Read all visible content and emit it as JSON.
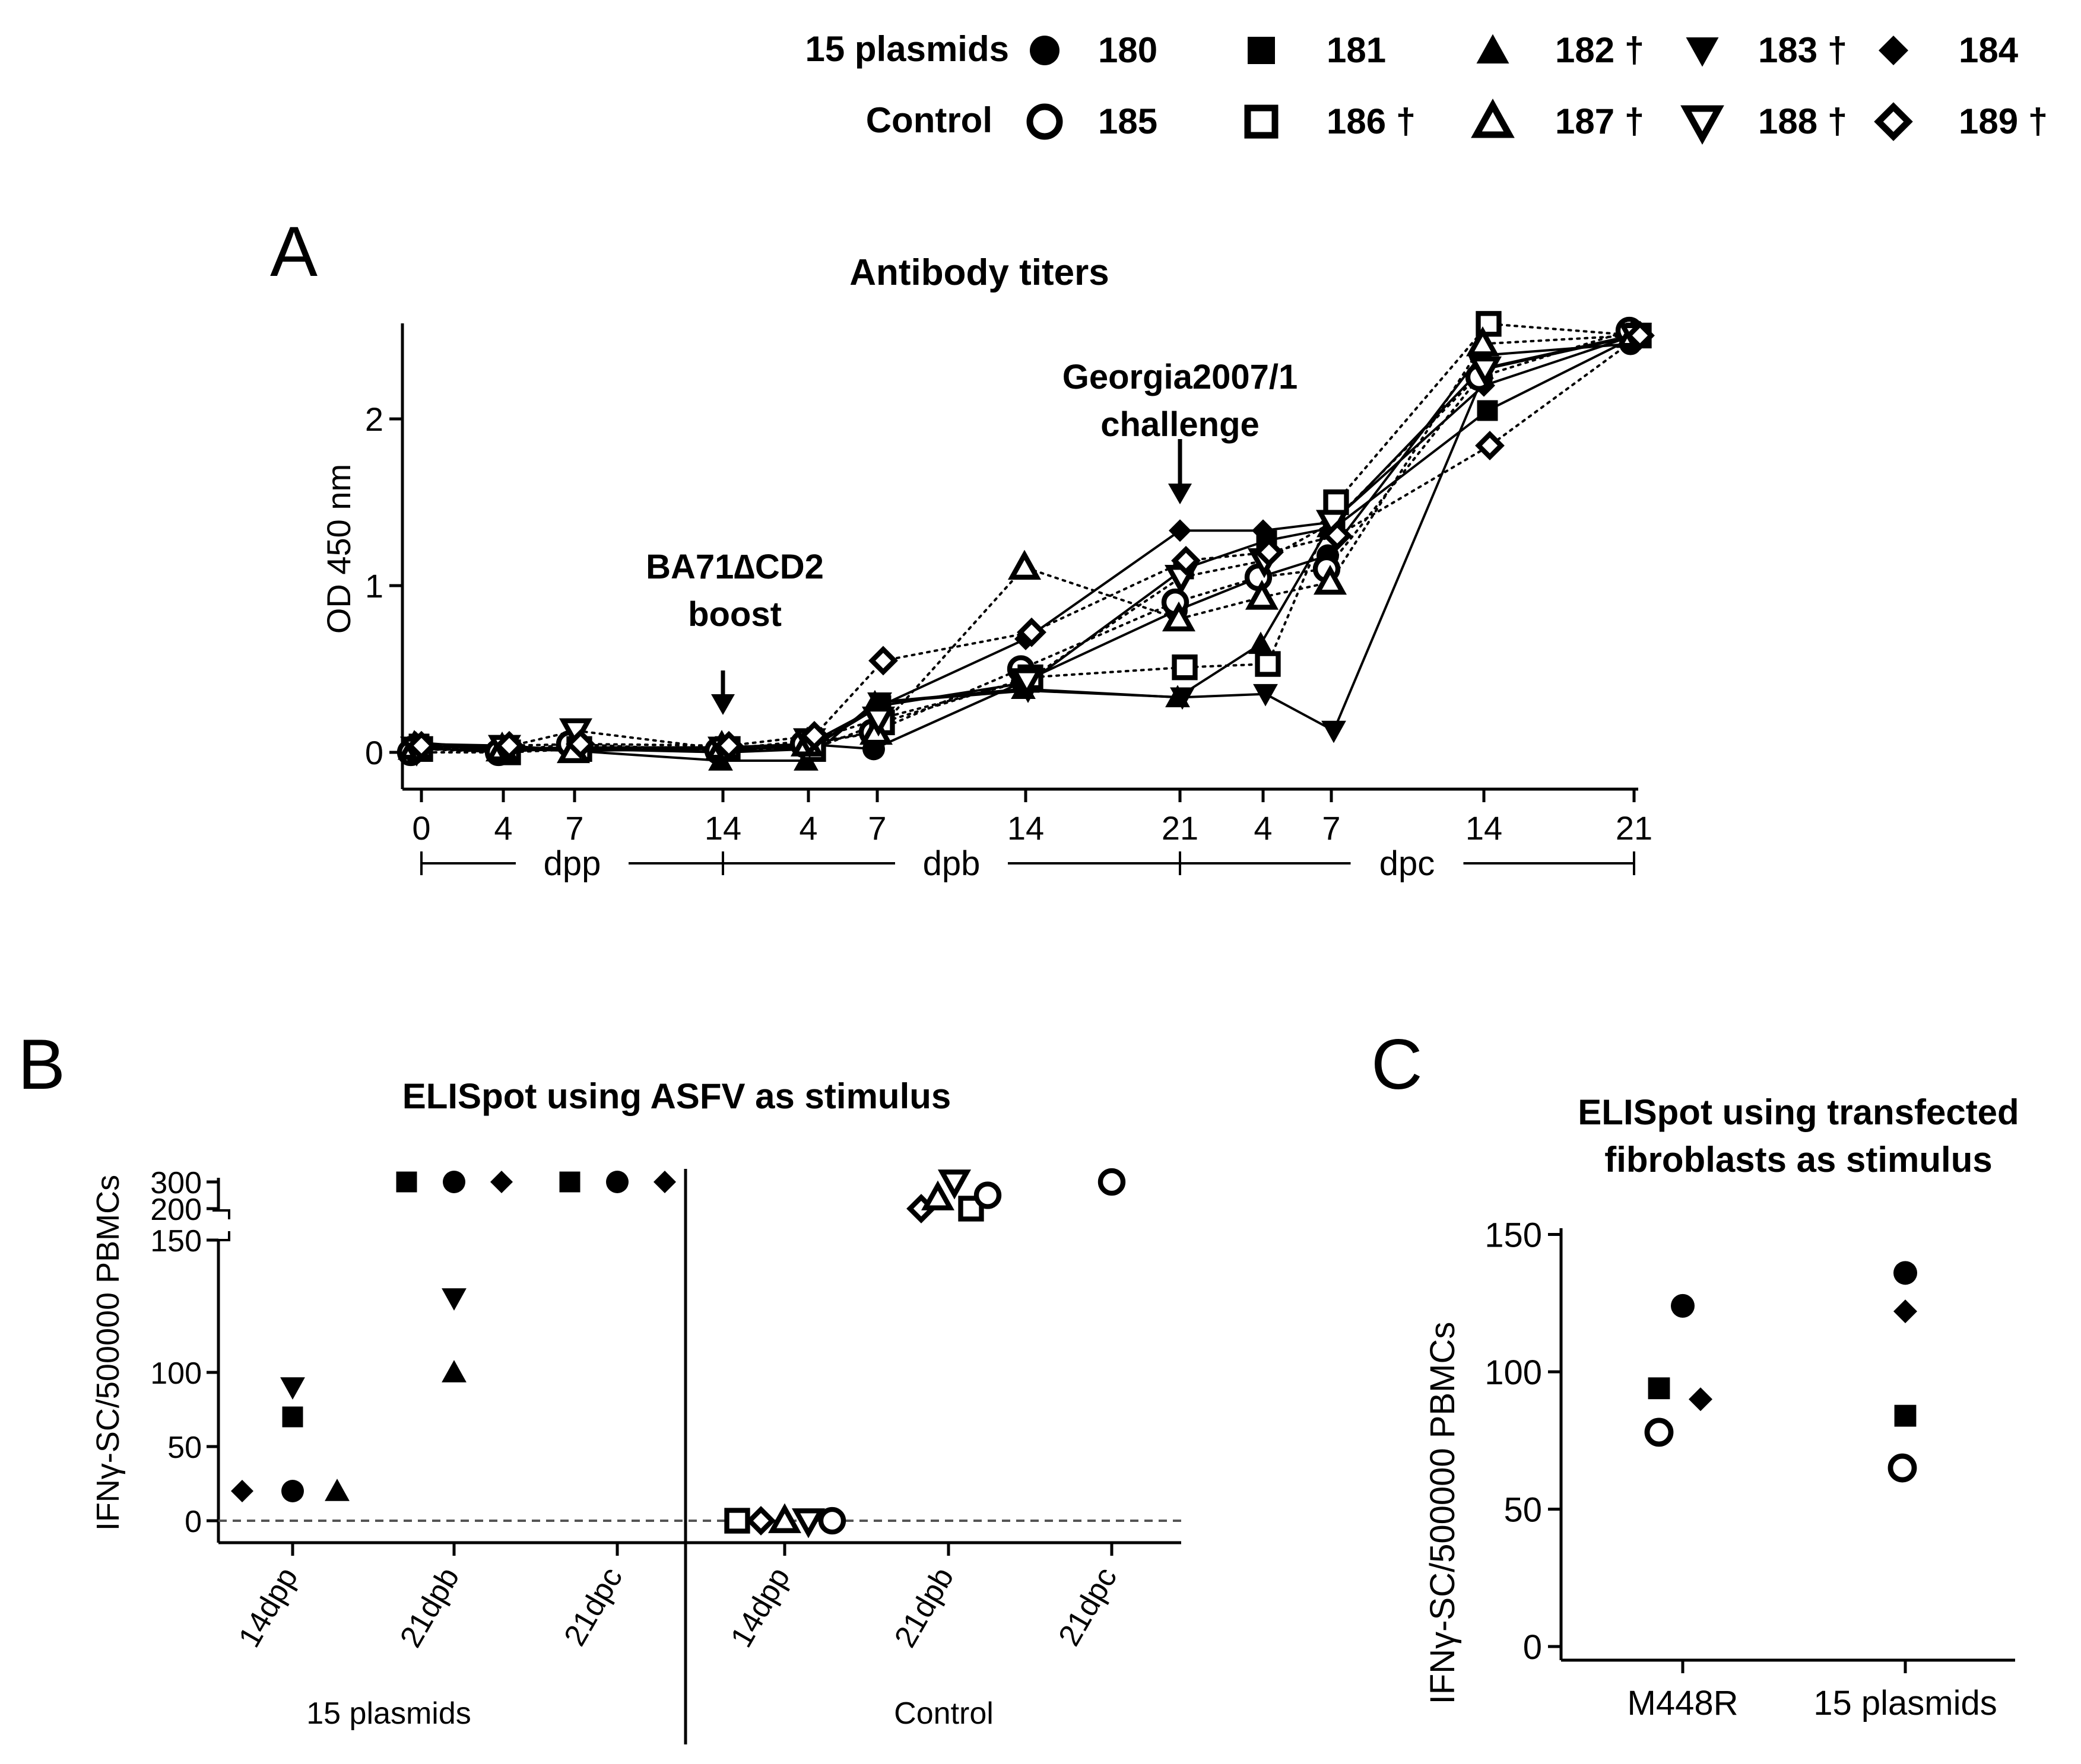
{
  "figure_id": "",
  "legend": {
    "groups": [
      {
        "label": "15 plasmids",
        "items": [
          {
            "id": "180",
            "label": "180",
            "marker": "circle-filled"
          },
          {
            "id": "181",
            "label": "181",
            "marker": "square-filled"
          },
          {
            "id": "182",
            "label": "182 †",
            "marker": "triangle-filled"
          },
          {
            "id": "183",
            "label": "183 †",
            "marker": "triangle-down-filled"
          },
          {
            "id": "184",
            "label": "184",
            "marker": "diamond-filled"
          }
        ]
      },
      {
        "label": "Control",
        "items": [
          {
            "id": "185",
            "label": "185",
            "marker": "circle-open"
          },
          {
            "id": "186",
            "label": "186 †",
            "marker": "square-open"
          },
          {
            "id": "187",
            "label": "187 †",
            "marker": "triangle-open"
          },
          {
            "id": "188",
            "label": "188 †",
            "marker": "triangle-down-open"
          },
          {
            "id": "189",
            "label": "189 †",
            "marker": "diamond-open"
          }
        ]
      }
    ]
  },
  "chart_data": [
    {
      "panel": "A",
      "type": "line",
      "title": "Antibody titers",
      "ylabel": "OD 450 nm",
      "ylim": [
        -0.2,
        2.55
      ],
      "yticks": [
        0,
        1,
        2
      ],
      "x_ticks": [
        "0",
        "4",
        "7",
        "14",
        "4",
        "7",
        "14",
        "21",
        "4",
        "7",
        "14",
        "21"
      ],
      "phases": [
        {
          "label": "dpp",
          "from": 0,
          "to": 3
        },
        {
          "label": "dpb",
          "from": 3,
          "to": 7
        },
        {
          "label": "dpc",
          "from": 7,
          "to": 11
        }
      ],
      "annotations": [
        {
          "lines": [
            "BA71∆CD2",
            "boost"
          ],
          "at": 3
        },
        {
          "lines": [
            "Georgia2007/1",
            "challenge"
          ],
          "at": 7
        }
      ],
      "series": [
        {
          "id": "180",
          "style": "solid",
          "values": [
            0.03,
            0.0,
            0.03,
            0.0,
            0.05,
            0.02,
            0.42,
            0.85,
            1.05,
            1.18,
            2.38,
            2.45
          ]
        },
        {
          "id": "181",
          "style": "solid",
          "values": [
            0.05,
            0.04,
            0.01,
            0.02,
            0.03,
            0.28,
            0.42,
            1.1,
            1.27,
            1.35,
            2.05,
            2.5
          ]
        },
        {
          "id": "182",
          "style": "solid",
          "values": [
            0.04,
            0.02,
            0.01,
            -0.05,
            -0.05,
            0.3,
            0.38,
            0.33,
            0.65,
            1.35,
            2.3,
            2.5
          ]
        },
        {
          "id": "183",
          "style": "solid",
          "values": [
            0.02,
            0.01,
            0.02,
            0.0,
            0.02,
            0.3,
            0.37,
            0.33,
            0.35,
            0.13,
            2.3,
            2.5
          ]
        },
        {
          "id": "184",
          "style": "solid",
          "values": [
            0.06,
            0.02,
            0.03,
            0.03,
            0.05,
            0.27,
            0.68,
            1.33,
            1.33,
            1.38,
            2.2,
            2.5
          ]
        },
        {
          "id": "185",
          "style": "dotted",
          "values": [
            0.0,
            0.0,
            0.05,
            0.01,
            0.05,
            0.12,
            0.5,
            0.9,
            1.05,
            1.1,
            2.25,
            2.53
          ]
        },
        {
          "id": "186",
          "style": "dotted",
          "values": [
            0.02,
            0.0,
            0.02,
            0.02,
            0.02,
            0.18,
            0.45,
            0.51,
            0.53,
            1.5,
            2.57,
            2.5
          ]
        },
        {
          "id": "187",
          "style": "dotted",
          "values": [
            0.03,
            0.02,
            0.01,
            0.03,
            0.05,
            0.12,
            1.11,
            0.8,
            0.93,
            1.02,
            2.45,
            2.5
          ]
        },
        {
          "id": "188",
          "style": "dotted",
          "values": [
            0.02,
            0.03,
            0.13,
            0.02,
            0.07,
            0.2,
            0.43,
            1.05,
            1.15,
            1.38,
            2.3,
            2.5
          ]
        },
        {
          "id": "189",
          "style": "dotted",
          "values": [
            0.04,
            0.04,
            0.05,
            0.04,
            0.1,
            0.55,
            0.72,
            1.15,
            1.2,
            1.3,
            1.84,
            2.5
          ]
        }
      ]
    },
    {
      "panel": "B",
      "type": "scatter",
      "title": "ELISpot using ASFV as stimulus",
      "ylabel": "IFNγ-SC/500000 PBMCs",
      "ylim": [
        -10,
        300
      ],
      "yticks": [
        0,
        50,
        100,
        150,
        200,
        300
      ],
      "axis_break": [
        150,
        200
      ],
      "categories": [
        "14dpp",
        "21dpb",
        "21dpc",
        "14dpp",
        "21dpb",
        "21dpc"
      ],
      "group_labels": [
        "15 plasmids",
        "Control"
      ],
      "zero_line": true,
      "points": [
        {
          "id": "184",
          "category": 0,
          "y": 20
        },
        {
          "id": "180",
          "category": 0,
          "y": 20
        },
        {
          "id": "181",
          "category": 0,
          "y": 70
        },
        {
          "id": "183",
          "category": 0,
          "y": 90
        },
        {
          "id": "182",
          "category": 0,
          "y": 20
        },
        {
          "id": "181",
          "category": 1,
          "y": 300
        },
        {
          "id": "180",
          "category": 1,
          "y": 300
        },
        {
          "id": "184",
          "category": 1,
          "y": 300
        },
        {
          "id": "183",
          "category": 1,
          "y": 150
        },
        {
          "id": "182",
          "category": 1,
          "y": 100
        },
        {
          "id": "181",
          "category": 2,
          "y": 300
        },
        {
          "id": "180",
          "category": 2,
          "y": 300
        },
        {
          "id": "184",
          "category": 2,
          "y": 300
        },
        {
          "id": "186",
          "category": 3,
          "y": 0
        },
        {
          "id": "189",
          "category": 3,
          "y": 0
        },
        {
          "id": "187",
          "category": 3,
          "y": 0
        },
        {
          "id": "188",
          "category": 3,
          "y": 0
        },
        {
          "id": "185",
          "category": 3,
          "y": 0
        },
        {
          "id": "189",
          "category": 4,
          "y": 200
        },
        {
          "id": "187",
          "category": 4,
          "y": 240
        },
        {
          "id": "188",
          "category": 4,
          "y": 300
        },
        {
          "id": "186",
          "category": 4,
          "y": 200
        },
        {
          "id": "185",
          "category": 4,
          "y": 250
        },
        {
          "id": "185",
          "category": 5,
          "y": 300
        }
      ]
    },
    {
      "panel": "C",
      "type": "scatter",
      "title": "ELISpot using transfected fibroblasts as stimulus",
      "title_lines": [
        "ELISpot using transfected",
        "fibroblasts as stimulus"
      ],
      "ylabel": "IFNγ-SC/500000 PBMCs",
      "ylim": [
        0,
        150
      ],
      "yticks": [
        0,
        50,
        100,
        150
      ],
      "categories": [
        "M448R",
        "15 plasmids"
      ],
      "points": [
        {
          "id": "180",
          "category": 0,
          "y": 124
        },
        {
          "id": "181",
          "category": 0,
          "y": 94
        },
        {
          "id": "184",
          "category": 0,
          "y": 90
        },
        {
          "id": "185",
          "category": 0,
          "y": 78
        },
        {
          "id": "180",
          "category": 1,
          "y": 136
        },
        {
          "id": "184",
          "category": 1,
          "y": 122
        },
        {
          "id": "181",
          "category": 1,
          "y": 84
        },
        {
          "id": "185",
          "category": 1,
          "y": 65
        }
      ]
    }
  ],
  "panel_letters": [
    "A",
    "B",
    "C"
  ]
}
